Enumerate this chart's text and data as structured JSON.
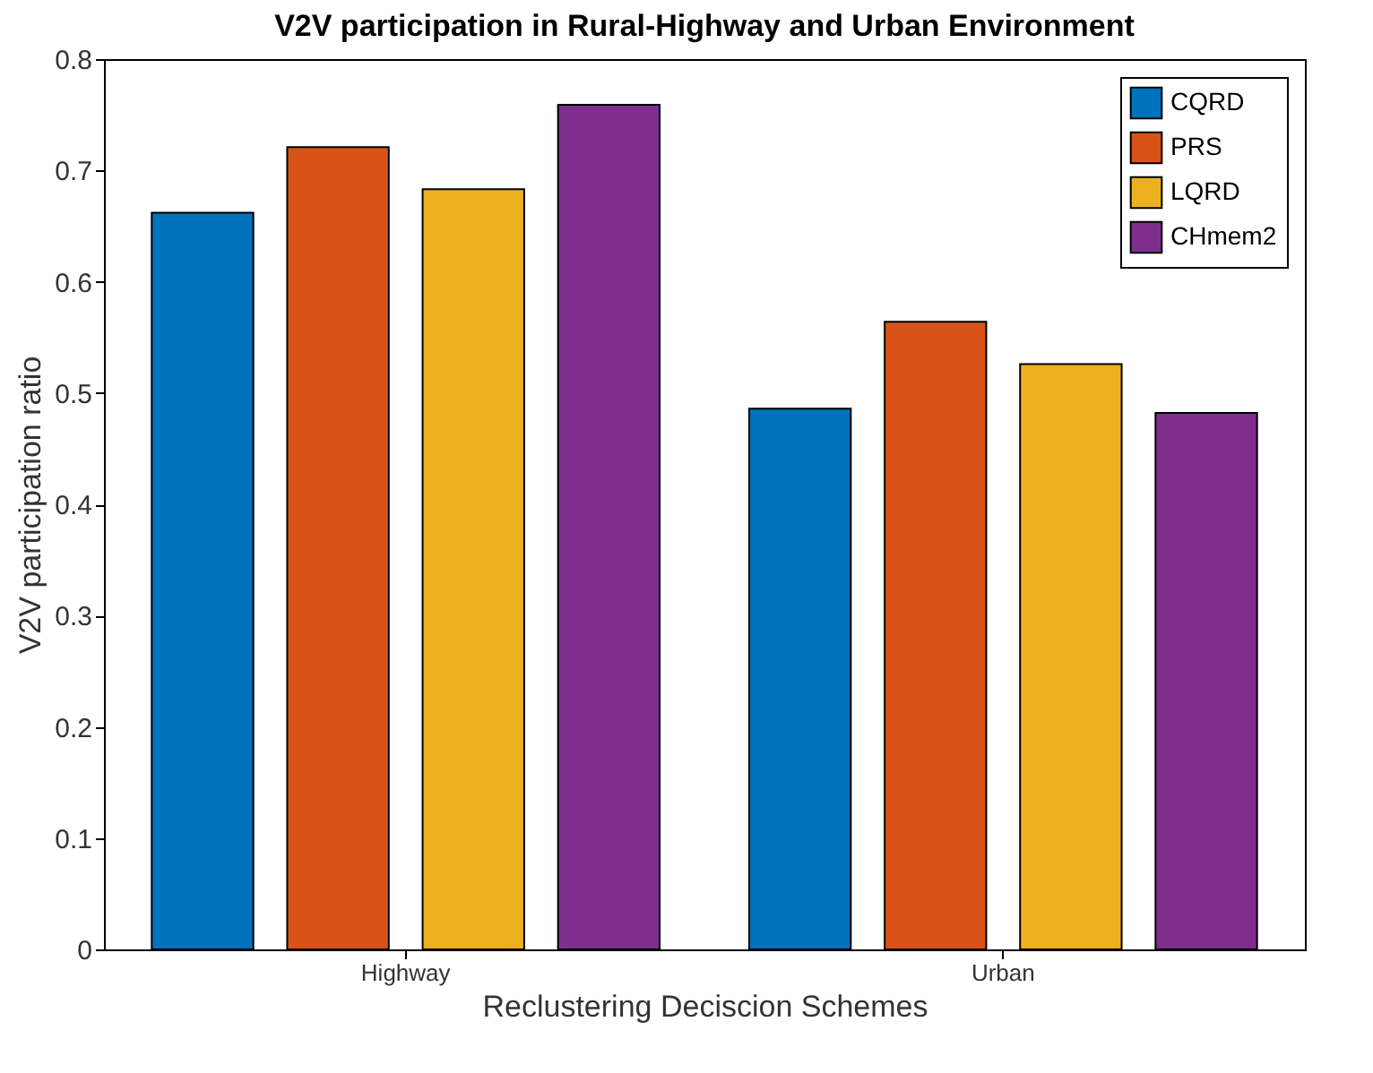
{
  "chart_data": {
    "type": "bar",
    "title": "V2V participation in Rural-Highway and Urban Environment",
    "xlabel": "Reclustering Deciscion Schemes",
    "ylabel": "V2V participation ratio",
    "categories": [
      "Highway",
      "Urban"
    ],
    "series": [
      {
        "name": "CQRD",
        "color": "#0072bd",
        "values": [
          0.662,
          0.486
        ]
      },
      {
        "name": "PRS",
        "color": "#d95319",
        "values": [
          0.721,
          0.564
        ]
      },
      {
        "name": "LQRD",
        "color": "#edb120",
        "values": [
          0.683,
          0.526
        ]
      },
      {
        "name": "CHmem2",
        "color": "#7e2f8e",
        "values": [
          0.759,
          0.482
        ]
      }
    ],
    "ylim": [
      0,
      0.8
    ],
    "yticks": [
      0,
      0.1,
      0.2,
      0.3,
      0.4,
      0.5,
      0.6,
      0.7,
      0.8
    ],
    "grid": false,
    "legend": "top right"
  }
}
